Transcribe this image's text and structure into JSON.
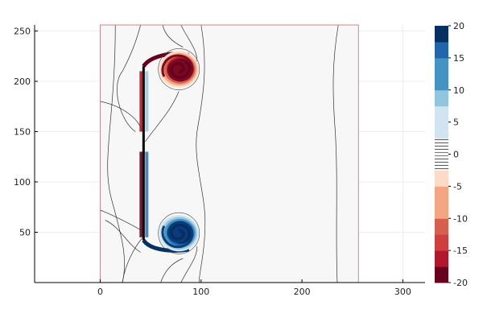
{
  "chart_data": {
    "type": "heatmap",
    "title": "",
    "xlabel": "",
    "ylabel": "",
    "xlim": [
      -65,
      322
    ],
    "ylim": [
      0,
      256
    ],
    "grid": true,
    "x_ticks": [
      0,
      100,
      200,
      300
    ],
    "y_ticks": [
      50,
      100,
      150,
      200,
      250
    ],
    "domain_box": {
      "x": [
        0,
        256
      ],
      "y": [
        0,
        256
      ]
    },
    "background_value": 0,
    "colorbar": {
      "range": [
        -20,
        20
      ],
      "ticks": [
        -20,
        -15,
        -10,
        -5,
        0,
        5,
        10,
        15,
        20
      ],
      "levels": [
        {
          "from": -20,
          "to": -17.5,
          "color": "#67001f"
        },
        {
          "from": -17.5,
          "to": -15,
          "color": "#b2182b"
        },
        {
          "from": -15,
          "to": -12.5,
          "color": "#cf3f3d"
        },
        {
          "from": -12.5,
          "to": -10,
          "color": "#d6604d"
        },
        {
          "from": -10,
          "to": -7.5,
          "color": "#f4a582"
        },
        {
          "from": -7.5,
          "to": -5,
          "color": "#f4a582"
        },
        {
          "from": -5,
          "to": -2.5,
          "color": "#fddbc7"
        },
        {
          "from": -2.5,
          "to": 2.5,
          "color": "#f7f7f7"
        },
        {
          "from": 2.5,
          "to": 5,
          "color": "#d1e5f0"
        },
        {
          "from": 5,
          "to": 7.5,
          "color": "#d1e5f0"
        },
        {
          "from": 7.5,
          "to": 10,
          "color": "#92c5de"
        },
        {
          "from": 10,
          "to": 12.5,
          "color": "#4393c3"
        },
        {
          "from": 12.5,
          "to": 15,
          "color": "#4393c3"
        },
        {
          "from": 15,
          "to": 17.5,
          "color": "#2166ac"
        },
        {
          "from": 17.5,
          "to": 20,
          "color": "#053061"
        }
      ]
    },
    "features": {
      "plate": {
        "x": 43,
        "y": [
          42,
          215
        ],
        "color": "#000000"
      },
      "vortices": [
        {
          "name_hint": "top",
          "center": [
            78,
            212
          ],
          "radius": 17,
          "sign": "negative"
        },
        {
          "name_hint": "bottom",
          "center": [
            78,
            49
          ],
          "radius": 17,
          "sign": "positive"
        }
      ],
      "far_contour_x": 236
    }
  }
}
